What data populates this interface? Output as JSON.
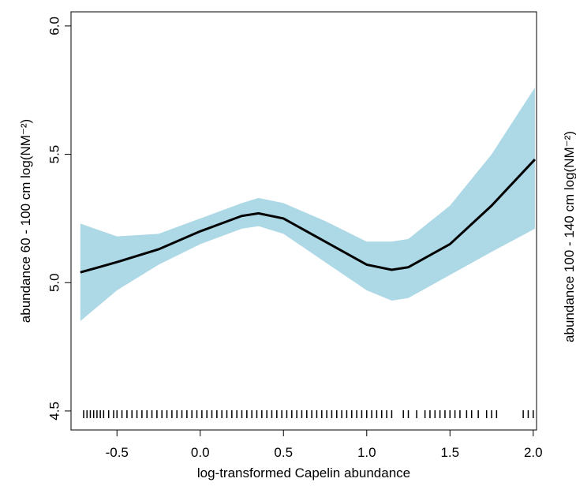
{
  "chart_data": {
    "type": "line",
    "y_label": "abundance 60 - 100 cm log(NM⁻²)",
    "x_label": "log-transformed Capelin abundance",
    "y2_label": "abundance 100 - 140 cm log(NM⁻²)",
    "x": [
      -0.72,
      -0.5,
      -0.25,
      0,
      0.25,
      0.35,
      0.5,
      0.75,
      1.0,
      1.15,
      1.25,
      1.5,
      1.75,
      2.01
    ],
    "fit": [
      5.04,
      5.08,
      5.13,
      5.2,
      5.26,
      5.27,
      5.25,
      5.16,
      5.07,
      5.05,
      5.06,
      5.15,
      5.3,
      5.48
    ],
    "upper": [
      5.23,
      5.18,
      5.19,
      5.25,
      5.31,
      5.33,
      5.31,
      5.24,
      5.16,
      5.16,
      5.17,
      5.3,
      5.5,
      5.76
    ],
    "lower": [
      4.85,
      4.97,
      5.07,
      5.15,
      5.21,
      5.22,
      5.19,
      5.08,
      4.97,
      4.93,
      4.94,
      5.03,
      5.12,
      5.21
    ],
    "line_color": "#000000",
    "band_color": "#add8e6",
    "rug": [
      -0.7,
      -0.68,
      -0.66,
      -0.64,
      -0.62,
      -0.6,
      -0.58,
      -0.55,
      -0.52,
      -0.5,
      -0.47,
      -0.44,
      -0.41,
      -0.38,
      -0.35,
      -0.32,
      -0.29,
      -0.26,
      -0.23,
      -0.2,
      -0.17,
      -0.14,
      -0.11,
      -0.08,
      -0.05,
      -0.02,
      0.01,
      0.04,
      0.07,
      0.1,
      0.13,
      0.16,
      0.19,
      0.22,
      0.25,
      0.28,
      0.31,
      0.34,
      0.37,
      0.4,
      0.43,
      0.46,
      0.49,
      0.52,
      0.55,
      0.58,
      0.61,
      0.64,
      0.67,
      0.7,
      0.73,
      0.76,
      0.79,
      0.82,
      0.85,
      0.88,
      0.91,
      0.94,
      0.97,
      1.0,
      1.03,
      1.06,
      1.09,
      1.12,
      1.15,
      1.22,
      1.25,
      1.3,
      1.35,
      1.38,
      1.41,
      1.44,
      1.47,
      1.5,
      1.53,
      1.56,
      1.6,
      1.63,
      1.67,
      1.72,
      1.75,
      1.78,
      1.94,
      1.97,
      2.0
    ],
    "xlim": [
      -0.776,
      2.02
    ],
    "ylim": [
      4.426,
      6.055
    ],
    "xticks": [
      -0.5,
      {
        "value": 0,
        "label": "0.0"
      },
      {
        "value": 0.5,
        "label": "0.5"
      },
      {
        "value": 1,
        "label": "1.0"
      },
      {
        "value": 1.5,
        "label": "1.5"
      },
      {
        "value": 2,
        "label": "2.0"
      }
    ],
    "yticks": [
      {
        "value": 4.5,
        "label": "4.5"
      },
      {
        "value": 5,
        "label": "5.0"
      },
      {
        "value": 5.5,
        "label": "5.5"
      },
      {
        "value": 6,
        "label": "6.0"
      }
    ]
  }
}
